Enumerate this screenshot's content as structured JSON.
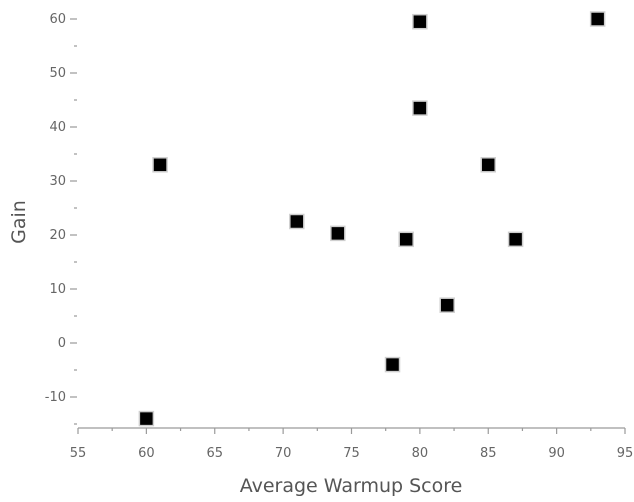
{
  "chart_data": {
    "type": "scatter",
    "title": "",
    "xlabel": "Average Warmup Score",
    "ylabel": "Gain",
    "xlim": [
      55,
      95
    ],
    "ylim": [
      -15,
      61
    ],
    "x_ticks": [
      "55",
      "60",
      "65",
      "70",
      "75",
      "80",
      "85",
      "90",
      "95"
    ],
    "y_ticks": [
      "-10",
      "0",
      "10",
      "20",
      "30",
      "40",
      "50",
      "60"
    ],
    "grid": false,
    "legend": "none",
    "marker_color": "#000000",
    "points": [
      {
        "x": 60,
        "y": -14
      },
      {
        "x": 61,
        "y": 33
      },
      {
        "x": 71,
        "y": 22.5
      },
      {
        "x": 74,
        "y": 20.3
      },
      {
        "x": 78,
        "y": -4
      },
      {
        "x": 79,
        "y": 19.2
      },
      {
        "x": 80,
        "y": 59.5
      },
      {
        "x": 80,
        "y": 43.5
      },
      {
        "x": 82,
        "y": 7
      },
      {
        "x": 85,
        "y": 33
      },
      {
        "x": 87,
        "y": 19.2
      },
      {
        "x": 93,
        "y": 60
      }
    ]
  }
}
